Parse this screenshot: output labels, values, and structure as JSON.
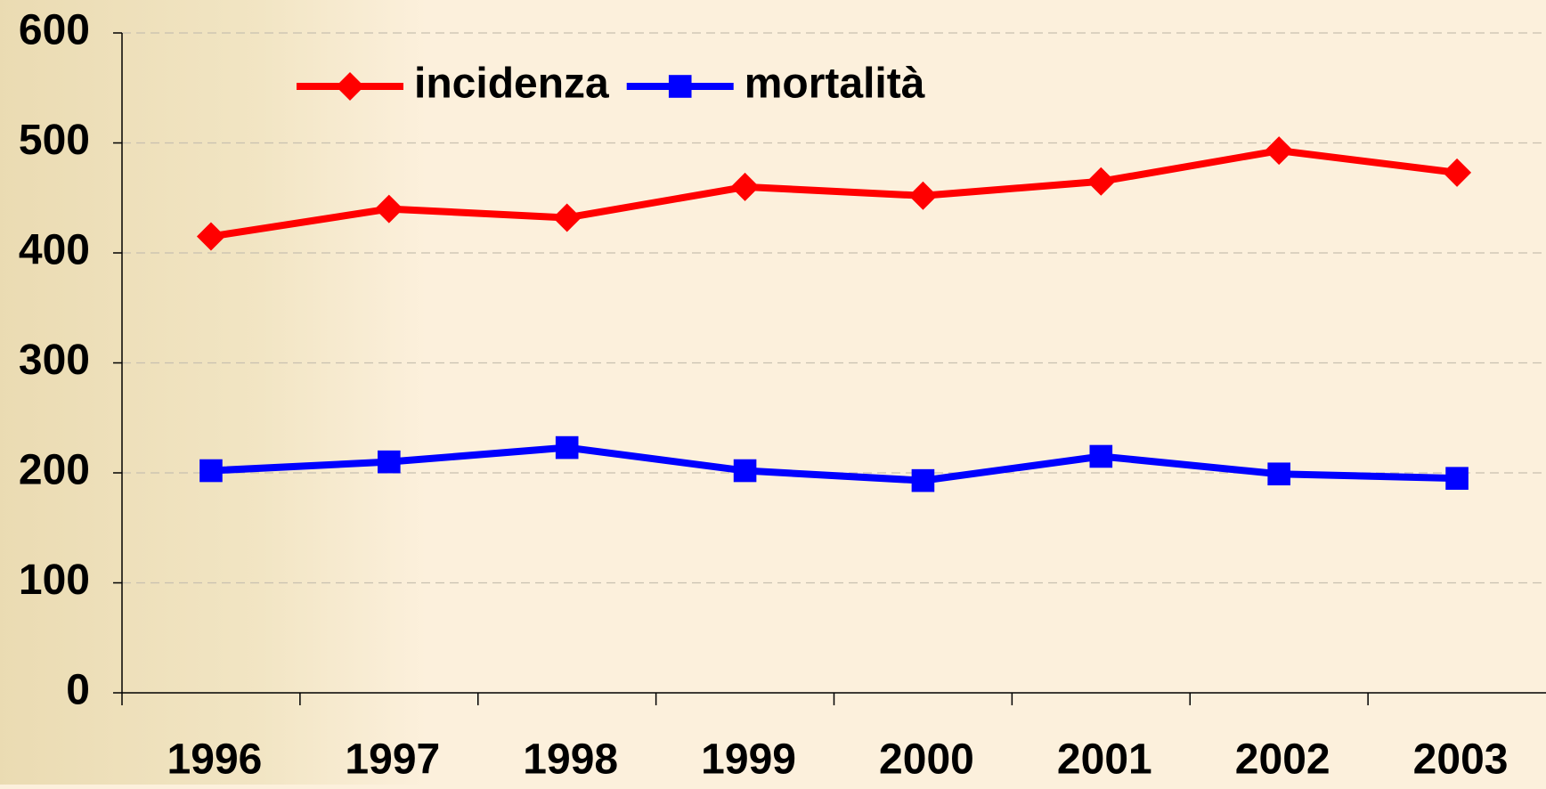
{
  "chart_data": {
    "type": "line",
    "categories": [
      "1996",
      "1997",
      "1998",
      "1999",
      "2000",
      "2001",
      "2002",
      "2003"
    ],
    "series": [
      {
        "name": "incidenza",
        "color": "#ff0000",
        "marker": "diamond",
        "values": [
          415,
          440,
          432,
          460,
          452,
          465,
          493,
          473
        ]
      },
      {
        "name": "mortalità",
        "color": "#0000ff",
        "marker": "square",
        "values": [
          202,
          210,
          223,
          202,
          193,
          215,
          199,
          195
        ]
      }
    ],
    "ylim": [
      0,
      600
    ],
    "yticks": [
      0,
      100,
      200,
      300,
      400,
      500,
      600
    ],
    "grid": true,
    "legend": "top"
  }
}
